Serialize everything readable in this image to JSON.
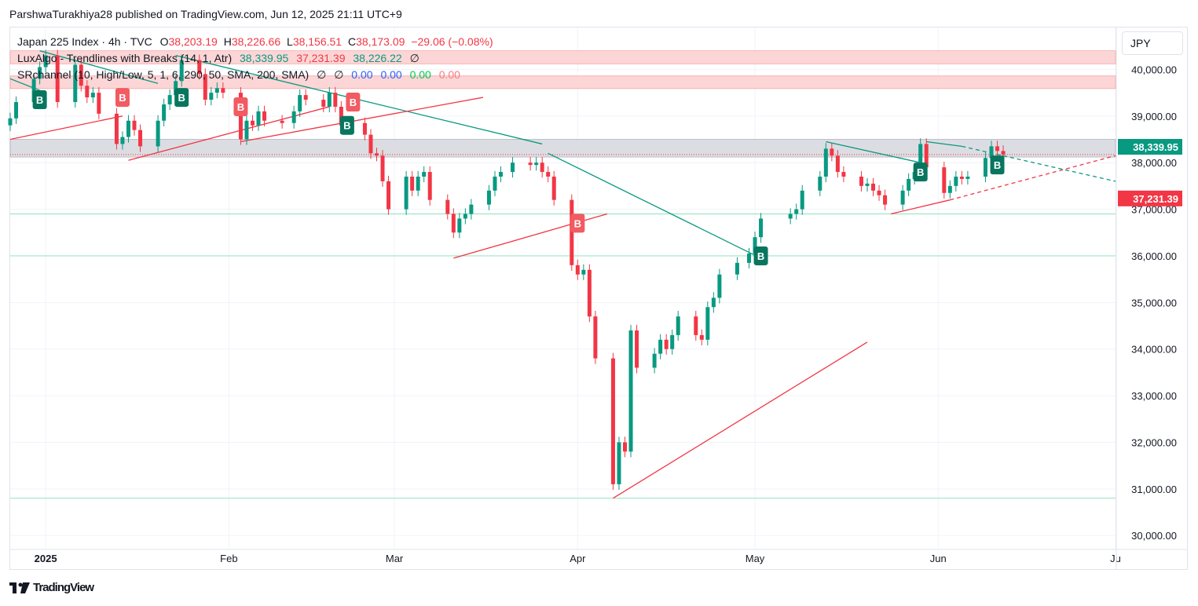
{
  "header": {
    "published_line": "ParshwaTurakhiya28 published on TradingView.com, Jun 12, 2025 21:11 UTC+9"
  },
  "legend": {
    "symbol": "Japan 225 Index · 4h · TVC",
    "o_label": "O",
    "o_value": "38,203.19",
    "h_label": "H",
    "h_value": "38,226.66",
    "l_label": "L",
    "l_value": "38,156.51",
    "c_label": "C",
    "c_value": "38,173.09",
    "change": "−29.06 (−0.08%)",
    "lux_name": "LuxAlgo - Trendlines with Breaks (14, 1, Atr)",
    "lux_v1": "38,339.95",
    "lux_v2": "37,231.39",
    "lux_v3": "38,226.22",
    "lux_v4": "∅",
    "sr_name": "SRchannel (10, High/Low, 5, 1, 6, 290, 50, SMA, 200, SMA)",
    "sr_v1": "∅",
    "sr_v2": "∅",
    "sr_v3": "0.00",
    "sr_v4": "0.00",
    "sr_v5": "0.00",
    "sr_v6": "0.00"
  },
  "currency_button": "JPY",
  "footer": {
    "logo_text": "TradingView"
  },
  "colors": {
    "up": "#089981",
    "down": "#f23645",
    "sr_zone_red": "#f8c4c4",
    "sr_zone_gray": "#d1d4dc",
    "support_line": "#9ee6c6"
  },
  "chart_data": {
    "type": "candlestick",
    "timeframe": "4h",
    "y_range": [
      29700,
      40900
    ],
    "y_ticks": [
      "40,000.00",
      "39,000.00",
      "38,000.00",
      "37,000.00",
      "36,000.00",
      "35,000.00",
      "34,000.00",
      "33,000.00",
      "32,000.00",
      "31,000.00",
      "30,000.00"
    ],
    "y_tick_values": [
      40000,
      39000,
      38000,
      37000,
      36000,
      35000,
      34000,
      33000,
      32000,
      31000,
      30000
    ],
    "x_range": [
      "2024-12-26",
      "2025-07-01"
    ],
    "x_ticks": [
      {
        "label": "2025",
        "date": "2025-01-01",
        "bold": true
      },
      {
        "label": "Feb",
        "date": "2025-02-01",
        "bold": false
      },
      {
        "label": "Mar",
        "date": "2025-03-01",
        "bold": false
      },
      {
        "label": "Apr",
        "date": "2025-04-01",
        "bold": false
      },
      {
        "label": "May",
        "date": "2025-05-01",
        "bold": false
      },
      {
        "label": "Jun",
        "date": "2025-06-01",
        "bold": false
      },
      {
        "label": "Ju",
        "date": "2025-07-01",
        "bold": false
      }
    ],
    "price_labels": [
      {
        "text": "38,339.95",
        "value": 38339.95,
        "color": "#089981"
      },
      {
        "text": "37,231.39",
        "value": 37231.39,
        "color": "#f23645"
      }
    ],
    "sr_zones": [
      {
        "from": 40120,
        "to": 40400,
        "color": "red"
      },
      {
        "from": 39590,
        "to": 39860,
        "color": "red"
      },
      {
        "from": 38120,
        "to": 38500,
        "color": "gray"
      }
    ],
    "support_lines": [
      36900,
      36000,
      30800
    ],
    "candles_close": [
      [
        "2024-12-26",
        38950
      ],
      [
        "2024-12-27",
        39300
      ],
      [
        "2024-12-30",
        39800
      ],
      [
        "2024-12-31",
        40050
      ],
      [
        "2025-01-01",
        40300
      ],
      [
        "2025-01-03",
        39300
      ],
      [
        "2025-01-06",
        40100
      ],
      [
        "2025-01-07",
        39650
      ],
      [
        "2025-01-08",
        39400
      ],
      [
        "2025-01-09",
        39500
      ],
      [
        "2025-01-10",
        39050
      ],
      [
        "2025-01-13",
        38400
      ],
      [
        "2025-01-14",
        38550
      ],
      [
        "2025-01-15",
        38900
      ],
      [
        "2025-01-16",
        38700
      ],
      [
        "2025-01-17",
        38350
      ],
      [
        "2025-01-20",
        38900
      ],
      [
        "2025-01-21",
        39250
      ],
      [
        "2025-01-22",
        39450
      ],
      [
        "2025-01-23",
        39750
      ],
      [
        "2025-01-24",
        40200
      ],
      [
        "2025-01-27",
        39900
      ],
      [
        "2025-01-28",
        39350
      ],
      [
        "2025-01-29",
        39500
      ],
      [
        "2025-01-30",
        39600
      ],
      [
        "2025-01-31",
        39500
      ],
      [
        "2025-02-03",
        38500
      ],
      [
        "2025-02-04",
        38900
      ],
      [
        "2025-02-05",
        38800
      ],
      [
        "2025-02-06",
        39100
      ],
      [
        "2025-02-07",
        38900
      ],
      [
        "2025-02-10",
        38850
      ],
      [
        "2025-02-12",
        39100
      ],
      [
        "2025-02-13",
        39450
      ],
      [
        "2025-02-14",
        39350
      ],
      [
        "2025-02-17",
        39200
      ],
      [
        "2025-02-18",
        39500
      ],
      [
        "2025-02-19",
        39200
      ],
      [
        "2025-02-20",
        38800
      ],
      [
        "2025-02-21",
        38850
      ],
      [
        "2025-02-24",
        38600
      ],
      [
        "2025-02-25",
        38200
      ],
      [
        "2025-02-26",
        38150
      ],
      [
        "2025-02-27",
        37600
      ],
      [
        "2025-02-28",
        37000
      ],
      [
        "2025-03-03",
        37700
      ],
      [
        "2025-03-04",
        37400
      ],
      [
        "2025-03-05",
        37700
      ],
      [
        "2025-03-06",
        37800
      ],
      [
        "2025-03-07",
        37200
      ],
      [
        "2025-03-10",
        36900
      ],
      [
        "2025-03-11",
        36500
      ],
      [
        "2025-03-12",
        36800
      ],
      [
        "2025-03-13",
        36900
      ],
      [
        "2025-03-14",
        37100
      ],
      [
        "2025-03-17",
        37400
      ],
      [
        "2025-03-18",
        37700
      ],
      [
        "2025-03-19",
        37800
      ],
      [
        "2025-03-21",
        38000
      ],
      [
        "2025-03-24",
        37950
      ],
      [
        "2025-03-25",
        38000
      ],
      [
        "2025-03-26",
        37800
      ],
      [
        "2025-03-27",
        37700
      ],
      [
        "2025-03-28",
        37200
      ],
      [
        "2025-03-31",
        35800
      ],
      [
        "2025-04-01",
        35600
      ],
      [
        "2025-04-02",
        35700
      ],
      [
        "2025-04-03",
        34700
      ],
      [
        "2025-04-04",
        33800
      ],
      [
        "2025-04-07",
        31100
      ],
      [
        "2025-04-08",
        32000
      ],
      [
        "2025-04-09",
        31800
      ],
      [
        "2025-04-10",
        34400
      ],
      [
        "2025-04-11",
        33600
      ],
      [
        "2025-04-14",
        33900
      ],
      [
        "2025-04-15",
        34200
      ],
      [
        "2025-04-16",
        34000
      ],
      [
        "2025-04-17",
        34300
      ],
      [
        "2025-04-18",
        34700
      ],
      [
        "2025-04-21",
        34300
      ],
      [
        "2025-04-22",
        34200
      ],
      [
        "2025-04-23",
        34900
      ],
      [
        "2025-04-24",
        35100
      ],
      [
        "2025-04-25",
        35600
      ],
      [
        "2025-04-28",
        35850
      ],
      [
        "2025-04-30",
        36050
      ],
      [
        "2025-05-01",
        36400
      ],
      [
        "2025-05-02",
        36800
      ],
      [
        "2025-05-07",
        36900
      ],
      [
        "2025-05-08",
        37000
      ],
      [
        "2025-05-09",
        37400
      ],
      [
        "2025-05-12",
        37700
      ],
      [
        "2025-05-13",
        38300
      ],
      [
        "2025-05-14",
        38150
      ],
      [
        "2025-05-15",
        37800
      ],
      [
        "2025-05-16",
        37700
      ],
      [
        "2025-05-19",
        37500
      ],
      [
        "2025-05-20",
        37550
      ],
      [
        "2025-05-21",
        37400
      ],
      [
        "2025-05-22",
        37300
      ],
      [
        "2025-05-23",
        37100
      ],
      [
        "2025-05-26",
        37400
      ],
      [
        "2025-05-27",
        37650
      ],
      [
        "2025-05-28",
        37800
      ],
      [
        "2025-05-29",
        38400
      ],
      [
        "2025-05-30",
        37900
      ],
      [
        "2025-06-02",
        37350
      ],
      [
        "2025-06-03",
        37500
      ],
      [
        "2025-06-04",
        37700
      ],
      [
        "2025-06-05",
        37650
      ],
      [
        "2025-06-06",
        37700
      ],
      [
        "2025-06-09",
        38100
      ],
      [
        "2025-06-10",
        38350
      ],
      [
        "2025-06-11",
        38250
      ],
      [
        "2025-06-12",
        38173.09
      ]
    ],
    "trendlines": [
      {
        "color": "teal",
        "from": [
          "2024-12-26",
          39800
        ],
        "to": [
          "2025-01-01",
          39500
        ]
      },
      {
        "color": "teal",
        "from": [
          "2024-12-31",
          40400
        ],
        "to": [
          "2025-01-20",
          39700
        ]
      },
      {
        "color": "teal",
        "from": [
          "2025-01-23",
          40300
        ],
        "to": [
          "2025-03-26",
          38400
        ]
      },
      {
        "color": "teal",
        "from": [
          "2025-03-27",
          38200
        ],
        "to": [
          "2025-05-02",
          35950
        ]
      },
      {
        "color": "teal",
        "from": [
          "2025-05-13",
          38450
        ],
        "to": [
          "2025-05-29",
          38000
        ]
      },
      {
        "color": "teal",
        "from": [
          "2025-05-30",
          38450
        ],
        "to": [
          "2025-06-05",
          38350
        ]
      },
      {
        "color": "teal",
        "dashed": true,
        "from": [
          "2025-06-05",
          38350
        ],
        "to": [
          "2025-07-01",
          37600
        ]
      },
      {
        "color": "red",
        "from": [
          "2024-12-26",
          38500
        ],
        "to": [
          "2025-01-14",
          39000
        ]
      },
      {
        "color": "red",
        "from": [
          "2025-01-15",
          38050
        ],
        "to": [
          "2025-02-18",
          39200
        ]
      },
      {
        "color": "red",
        "from": [
          "2025-02-03",
          38450
        ],
        "to": [
          "2025-03-16",
          39400
        ]
      },
      {
        "color": "red",
        "from": [
          "2025-03-11",
          35950
        ],
        "to": [
          "2025-04-06",
          36900
        ]
      },
      {
        "color": "red",
        "from": [
          "2025-04-07",
          30800
        ],
        "to": [
          "2025-05-20",
          34150
        ]
      },
      {
        "color": "red",
        "from": [
          "2025-05-24",
          36900
        ],
        "to": [
          "2025-06-03",
          37200
        ]
      },
      {
        "color": "red",
        "dashed": true,
        "from": [
          "2025-06-03",
          37200
        ],
        "to": [
          "2025-07-01",
          38150
        ]
      }
    ],
    "break_labels": [
      {
        "text": "B",
        "type": "bull",
        "date": "2024-12-31",
        "value": 39350
      },
      {
        "text": "B",
        "type": "bear",
        "date": "2025-01-14",
        "value": 39400
      },
      {
        "text": "B",
        "type": "bull",
        "date": "2025-01-24",
        "value": 39400
      },
      {
        "text": "B",
        "type": "bear",
        "date": "2025-02-03",
        "value": 39200
      },
      {
        "text": "B",
        "type": "bull",
        "date": "2025-02-21",
        "value": 38800
      },
      {
        "text": "B",
        "type": "bear",
        "date": "2025-02-22",
        "value": 39300
      },
      {
        "text": "B",
        "type": "bear",
        "date": "2025-04-01",
        "value": 36700
      },
      {
        "text": "B",
        "type": "bull",
        "date": "2025-05-02",
        "value": 36000
      },
      {
        "text": "B",
        "type": "bull",
        "date": "2025-05-29",
        "value": 37800
      },
      {
        "text": "B",
        "type": "bull",
        "date": "2025-06-11",
        "value": 37950
      }
    ]
  }
}
